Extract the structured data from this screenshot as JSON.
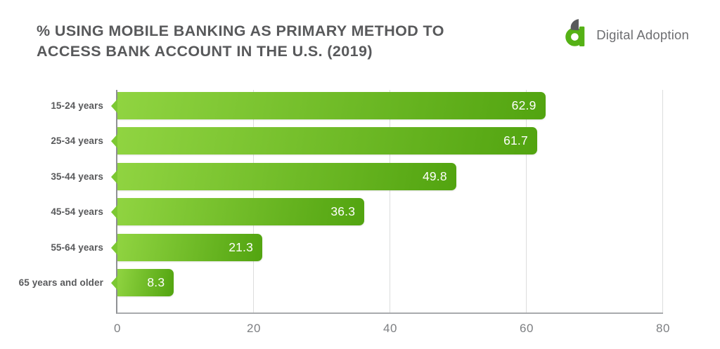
{
  "header": {
    "title_line1": "% USING MOBILE BANKING AS PRIMARY METHOD TO",
    "title_line2": "ACCESS BANK ACCOUNT IN THE U.S. (2019)",
    "logo_text": "Digital Adoption"
  },
  "chart_data": {
    "type": "bar",
    "orientation": "horizontal",
    "title": "% USING MOBILE BANKING AS PRIMARY METHOD TO ACCESS BANK ACCOUNT IN THE U.S. (2019)",
    "categories": [
      "15-24 years",
      "25-34 years",
      "35-44 years",
      "45-54 years",
      "55-64 years",
      "65 years and older"
    ],
    "values": [
      62.9,
      61.7,
      49.8,
      36.3,
      21.3,
      8.3
    ],
    "xlabel": "",
    "ylabel": "",
    "xlim": [
      0,
      80
    ],
    "x_ticks": [
      0,
      20,
      40,
      60,
      80
    ],
    "grid": true,
    "legend": "none",
    "colors": {
      "bar_gradient_start": "#90d441",
      "bar_gradient_end": "#52a410",
      "arrow_green": "#7cc832",
      "value_text": "#ffffff",
      "label_text": "#58595b",
      "axis_text": "#7d7f82",
      "title_text": "#58595b",
      "gridline": "#dcdddd",
      "logo_green": "#55b115",
      "logo_gray": "#6d6e71"
    }
  }
}
